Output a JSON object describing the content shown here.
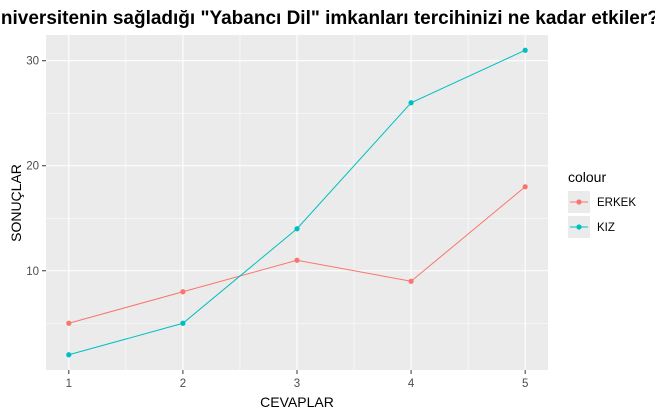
{
  "chart_data": {
    "type": "line",
    "title": "Üniversitenin sağladığı \"Yabancı Dil\" imkanları tercihinizi ne kadar etkiler?",
    "xlabel": "CEVAPLAR",
    "ylabel": "SONUÇLAR",
    "x": [
      1,
      2,
      3,
      4,
      5
    ],
    "x_ticks": [
      "1",
      "2",
      "3",
      "4",
      "5"
    ],
    "y_ticks": [
      "10",
      "20",
      "30"
    ],
    "xlim": [
      0.8,
      5.2
    ],
    "ylim": [
      0.55,
      32.45
    ],
    "grid": true,
    "legend": {
      "title": "colour",
      "position": "right"
    },
    "series": [
      {
        "name": "ERKEK",
        "color": "#F8766D",
        "values": [
          5,
          8,
          11,
          9,
          18
        ]
      },
      {
        "name": "KIZ",
        "color": "#00BFC4",
        "values": [
          2,
          5,
          14,
          26,
          31
        ]
      }
    ]
  }
}
